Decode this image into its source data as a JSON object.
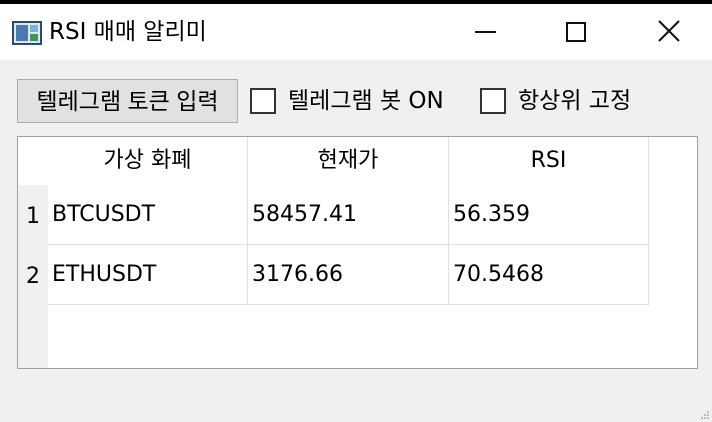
{
  "window": {
    "title": "RSI 매매 알리미",
    "icon": "app-chart-icon",
    "controls": [
      "minimize-icon",
      "maximize-icon",
      "close-icon"
    ]
  },
  "toolbar": {
    "token_button_label": "텔레그램 토큰 입력",
    "bot_checkbox_label": "텔레그램 봇 ON",
    "bot_checked": false,
    "ontop_checkbox_label": "항상위 고정",
    "ontop_checked": false
  },
  "table": {
    "headers": [
      "가상 화폐",
      "현재가",
      "RSI"
    ],
    "rows": [
      {
        "num": "1",
        "coin": "BTCUSDT",
        "price": "58457.41",
        "rsi": "56.359"
      },
      {
        "num": "2",
        "coin": "ETHUSDT",
        "price": "3176.66",
        "rsi": "70.5468"
      }
    ]
  }
}
